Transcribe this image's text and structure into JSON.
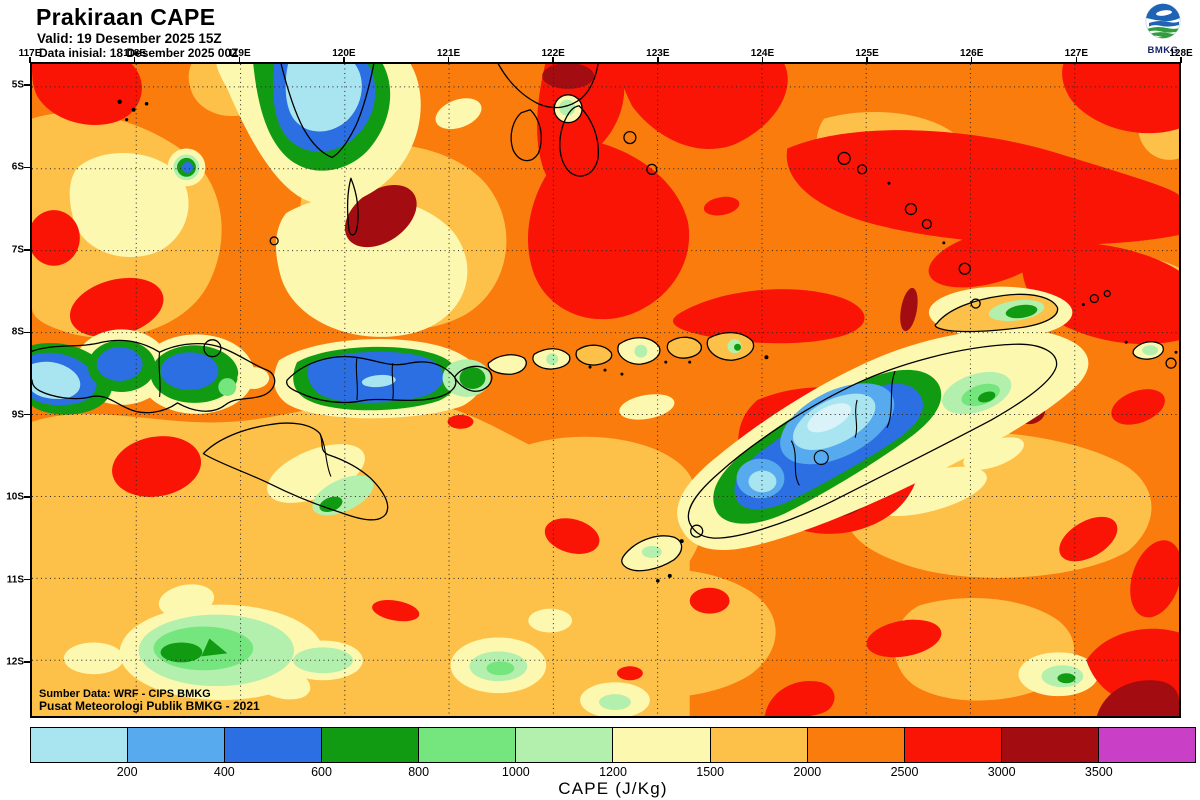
{
  "header": {
    "title": "Prakiraan CAPE",
    "valid_line": "Valid: 19 Desember 2025 15Z",
    "init_line": "Data inisial: 18 Desember 2025 00Z"
  },
  "logo": {
    "label": "BMKG"
  },
  "map": {
    "lon_labels": [
      "117E",
      "118E",
      "119E",
      "120E",
      "121E",
      "122E",
      "123E",
      "124E",
      "125E",
      "126E",
      "127E",
      "128E"
    ],
    "lat_labels": [
      "5S",
      "6S",
      "7S",
      "8S",
      "9S",
      "10S",
      "11S",
      "12S"
    ],
    "source_line1": "Sumber Data: WRF - CIPS BMKG",
    "source_line2": "Pusat Meteorologi Publik BMKG - 2021"
  },
  "colorbar": {
    "unit_label": "CAPE (J/Kg)",
    "boundary_labels": [
      "200",
      "400",
      "600",
      "800",
      "1000",
      "1200",
      "1500",
      "2000",
      "2500",
      "3000",
      "3500"
    ],
    "segments": [
      {
        "range": "<200",
        "color": "#A9E5F1"
      },
      {
        "range": "200-400",
        "color": "#58AAEF"
      },
      {
        "range": "400-600",
        "color": "#2B6FE3"
      },
      {
        "range": "600-800",
        "color": "#119B12"
      },
      {
        "range": "800-1000",
        "color": "#74E67D"
      },
      {
        "range": "1000-1200",
        "color": "#B4F0AD"
      },
      {
        "range": "1200-1500",
        "color": "#FDF8B0"
      },
      {
        "range": "1500-2000",
        "color": "#FDC14A"
      },
      {
        "range": "2000-2500",
        "color": "#F97C0D"
      },
      {
        "range": "2500-3000",
        "color": "#F91405"
      },
      {
        "range": "3000-3500",
        "color": "#A30D12"
      },
      {
        "range": ">3500",
        "color": "#C93FC5"
      }
    ]
  }
}
